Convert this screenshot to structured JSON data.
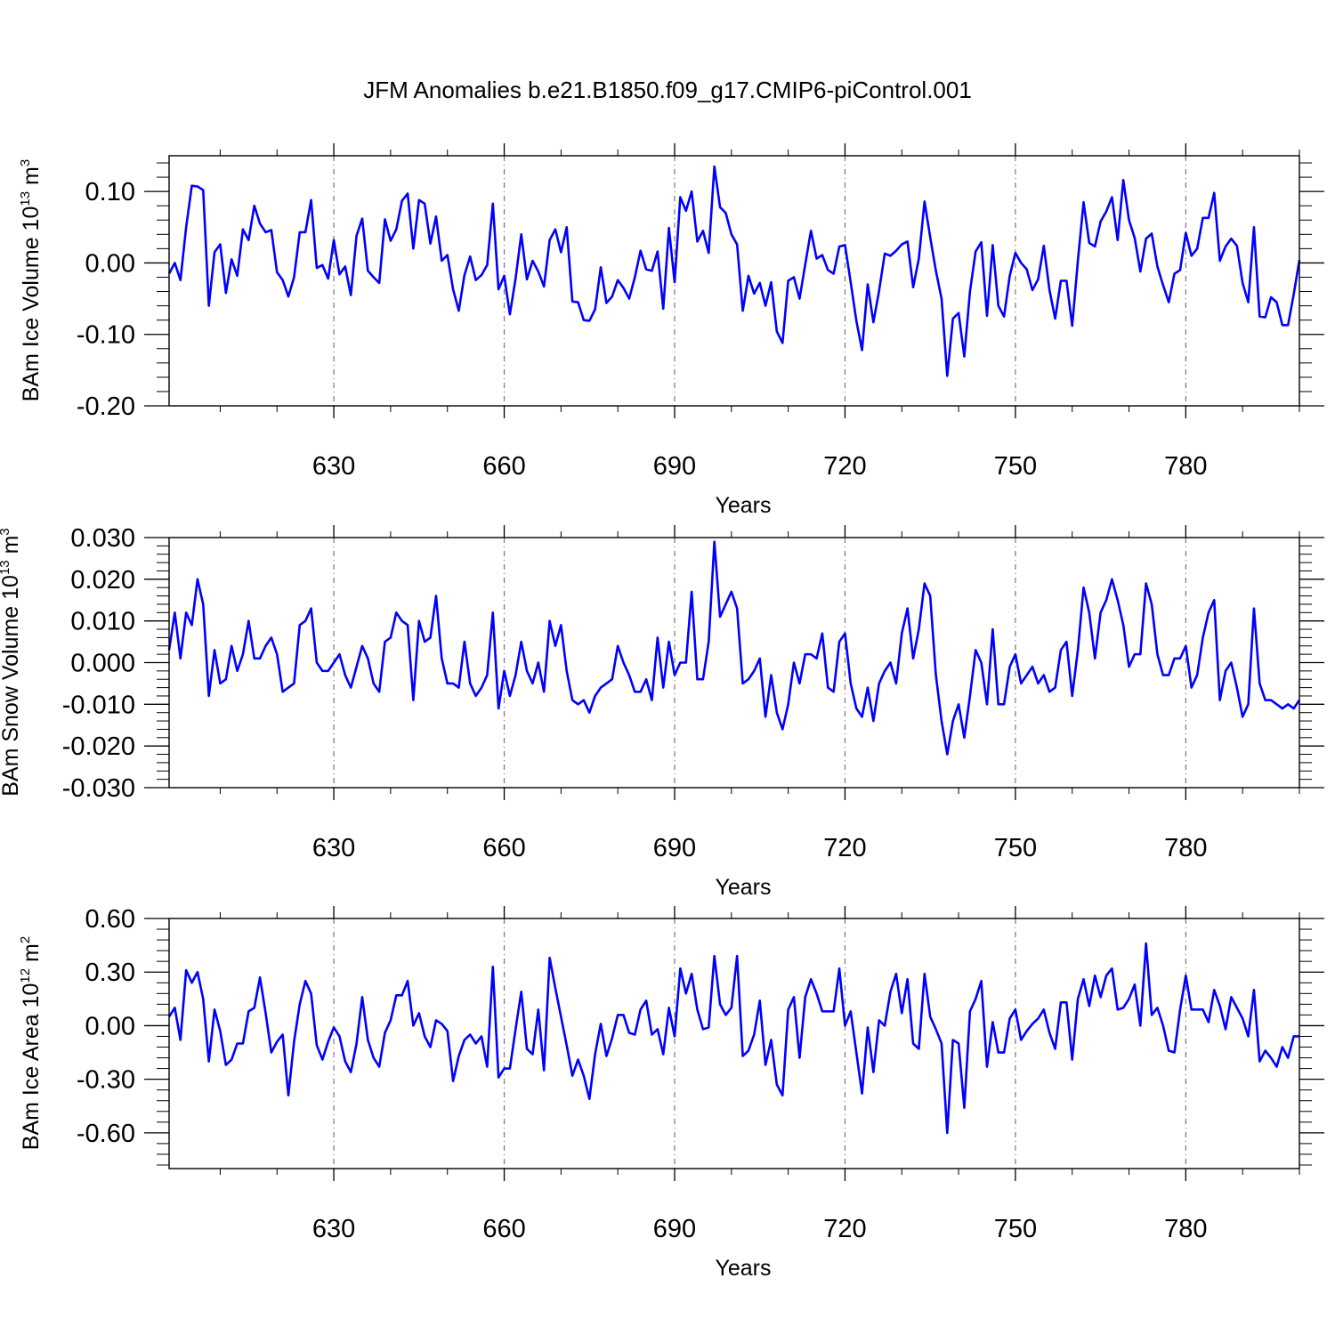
{
  "title": "JFM Anomalies b.e21.B1850.f09_g17.CMIP6-piControl.001",
  "line_color": "#0000ff",
  "chart_data": [
    {
      "type": "line",
      "xlabel": "Years",
      "ylabel": "BAm Ice Volume 10",
      "ylabel_sup_exp": "13",
      "ylabel_unit": " m",
      "ylabel_sup_unit": "3",
      "xlim": [
        601,
        800
      ],
      "ylim": [
        -0.2,
        0.15
      ],
      "x_ticks": [
        630,
        660,
        690,
        720,
        750,
        780
      ],
      "x_tick_labels": [
        "630",
        "660",
        "690",
        "720",
        "750",
        "780"
      ],
      "y_ticks": [
        -0.2,
        -0.1,
        0.0,
        0.1
      ],
      "y_tick_labels": [
        "-0.20",
        "-0.10",
        "0.00",
        "0.10"
      ],
      "grid": "vertical dashed at x ticks",
      "x_start": 601,
      "values": [
        -0.015,
        0.0,
        -0.024,
        0.05,
        0.108,
        0.107,
        0.102,
        -0.06,
        0.015,
        0.026,
        -0.042,
        0.005,
        -0.018,
        0.047,
        0.032,
        0.08,
        0.055,
        0.043,
        0.046,
        -0.013,
        -0.024,
        -0.047,
        -0.02,
        0.043,
        0.043,
        0.088,
        -0.007,
        -0.003,
        -0.022,
        0.032,
        -0.016,
        -0.005,
        -0.045,
        0.038,
        0.062,
        -0.011,
        -0.02,
        -0.028,
        0.061,
        0.031,
        0.047,
        0.087,
        0.097,
        0.02,
        0.088,
        0.083,
        0.027,
        0.065,
        0.003,
        0.011,
        -0.037,
        -0.067,
        -0.017,
        0.009,
        -0.024,
        -0.017,
        -0.003,
        0.083,
        -0.037,
        -0.018,
        -0.072,
        -0.022,
        0.04,
        -0.023,
        0.003,
        -0.012,
        -0.033,
        0.032,
        0.047,
        0.015,
        0.05,
        -0.054,
        -0.055,
        -0.08,
        -0.081,
        -0.065,
        -0.006,
        -0.056,
        -0.047,
        -0.024,
        -0.035,
        -0.05,
        -0.02,
        0.017,
        -0.009,
        -0.011,
        0.016,
        -0.064,
        0.049,
        -0.027,
        0.092,
        0.073,
        0.1,
        0.03,
        0.045,
        0.014,
        0.135,
        0.078,
        0.07,
        0.04,
        0.026,
        -0.067,
        -0.018,
        -0.043,
        -0.028,
        -0.06,
        -0.027,
        -0.096,
        -0.112,
        -0.025,
        -0.02,
        -0.05,
        -0.002,
        0.045,
        0.006,
        0.011,
        -0.01,
        -0.015,
        0.023,
        0.025,
        -0.027,
        -0.081,
        -0.122,
        -0.03,
        -0.083,
        -0.039,
        0.013,
        0.01,
        0.017,
        0.026,
        0.03,
        -0.034,
        0.006,
        0.086,
        0.036,
        -0.011,
        -0.05,
        -0.158,
        -0.078,
        -0.07,
        -0.131,
        -0.04,
        0.016,
        0.029,
        -0.074,
        0.025,
        -0.06,
        -0.075,
        -0.018,
        0.014,
        0.0,
        -0.009,
        -0.038,
        -0.023,
        0.024,
        -0.038,
        -0.078,
        -0.025,
        -0.025,
        -0.088,
        0.003,
        0.085,
        0.028,
        0.023,
        0.058,
        0.072,
        0.092,
        0.032,
        0.116,
        0.06,
        0.035,
        -0.012,
        0.034,
        0.041,
        -0.005,
        -0.031,
        -0.055,
        -0.015,
        -0.01,
        0.042,
        0.01,
        0.02,
        0.063,
        0.063,
        0.098,
        0.003,
        0.023,
        0.034,
        0.024,
        -0.028,
        -0.055,
        0.05,
        -0.075,
        -0.076,
        -0.048,
        -0.055,
        -0.087,
        -0.087,
        -0.044,
        0.004
      ]
    },
    {
      "type": "line",
      "xlabel": "Years",
      "ylabel": "BAm Snow Volume 10",
      "ylabel_sup_exp": "13",
      "ylabel_unit": " m",
      "ylabel_sup_unit": "3",
      "xlim": [
        601,
        800
      ],
      "ylim": [
        -0.03,
        0.03
      ],
      "x_ticks": [
        630,
        660,
        690,
        720,
        750,
        780
      ],
      "x_tick_labels": [
        "630",
        "660",
        "690",
        "720",
        "750",
        "780"
      ],
      "y_ticks": [
        -0.03,
        -0.02,
        -0.01,
        0.0,
        0.01,
        0.02,
        0.03
      ],
      "y_tick_labels": [
        "-0.030",
        "-0.020",
        "-0.010",
        "0.000",
        "0.010",
        "0.020",
        "0.030"
      ],
      "grid": "vertical dashed at x ticks",
      "x_start": 601,
      "values": [
        0.003,
        0.012,
        0.001,
        0.012,
        0.009,
        0.02,
        0.014,
        -0.008,
        0.003,
        -0.005,
        -0.004,
        0.004,
        -0.002,
        0.002,
        0.01,
        0.001,
        0.001,
        0.004,
        0.006,
        0.002,
        -0.007,
        -0.006,
        -0.005,
        0.009,
        0.01,
        0.013,
        0.0,
        -0.002,
        -0.002,
        0.0,
        0.002,
        -0.003,
        -0.006,
        -0.001,
        0.004,
        0.001,
        -0.005,
        -0.007,
        0.005,
        0.006,
        0.012,
        0.01,
        0.009,
        -0.009,
        0.01,
        0.005,
        0.006,
        0.016,
        0.001,
        -0.005,
        -0.005,
        -0.006,
        0.005,
        -0.005,
        -0.008,
        -0.006,
        -0.003,
        0.012,
        -0.011,
        -0.002,
        -0.008,
        -0.003,
        0.005,
        -0.002,
        -0.005,
        0.0,
        -0.007,
        0.01,
        0.004,
        0.009,
        -0.002,
        -0.009,
        -0.01,
        -0.009,
        -0.012,
        -0.008,
        -0.006,
        -0.005,
        -0.004,
        0.004,
        0.0,
        -0.003,
        -0.007,
        -0.007,
        -0.004,
        -0.009,
        0.006,
        -0.006,
        0.005,
        -0.003,
        0.0,
        0.0,
        0.017,
        -0.004,
        -0.004,
        0.005,
        0.029,
        0.011,
        0.014,
        0.017,
        0.013,
        -0.005,
        -0.004,
        -0.002,
        0.001,
        -0.013,
        -0.003,
        -0.012,
        -0.016,
        -0.01,
        0.0,
        -0.005,
        0.002,
        0.002,
        0.001,
        0.007,
        -0.006,
        -0.007,
        0.005,
        0.007,
        -0.005,
        -0.011,
        -0.013,
        -0.006,
        -0.014,
        -0.005,
        -0.002,
        0.0,
        -0.005,
        0.007,
        0.013,
        0.001,
        0.008,
        0.019,
        0.016,
        -0.003,
        -0.014,
        -0.022,
        -0.014,
        -0.01,
        -0.018,
        -0.008,
        0.003,
        0.0,
        -0.01,
        0.008,
        -0.01,
        -0.01,
        -0.001,
        0.002,
        -0.005,
        -0.003,
        -0.001,
        -0.005,
        -0.003,
        -0.007,
        -0.006,
        0.003,
        0.005,
        -0.008,
        0.003,
        0.018,
        0.012,
        0.001,
        0.012,
        0.015,
        0.02,
        0.015,
        0.009,
        -0.001,
        0.002,
        0.002,
        0.019,
        0.014,
        0.002,
        -0.003,
        -0.003,
        0.001,
        0.001,
        0.004,
        -0.006,
        -0.003,
        0.006,
        0.012,
        0.015,
        -0.009,
        -0.002,
        0.0,
        -0.006,
        -0.013,
        -0.01,
        0.013,
        -0.005,
        -0.009,
        -0.009,
        -0.01,
        -0.011,
        -0.01,
        -0.011,
        -0.009
      ]
    },
    {
      "type": "line",
      "xlabel": "Years",
      "ylabel": "BAm Ice Area 10",
      "ylabel_sup_exp": "12",
      "ylabel_unit": " m",
      "ylabel_sup_unit": "2",
      "xlim": [
        601,
        800
      ],
      "ylim": [
        -0.8,
        0.6
      ],
      "x_ticks": [
        630,
        660,
        690,
        720,
        750,
        780
      ],
      "x_tick_labels": [
        "630",
        "660",
        "690",
        "720",
        "750",
        "780"
      ],
      "y_ticks": [
        -0.6,
        -0.3,
        0.0,
        0.3,
        0.6
      ],
      "y_tick_labels": [
        "-0.60",
        "-0.30",
        "0.00",
        "0.30",
        "0.60"
      ],
      "grid": "vertical dashed at x ticks",
      "x_start": 601,
      "values": [
        0.05,
        0.1,
        -0.08,
        0.31,
        0.24,
        0.3,
        0.15,
        -0.2,
        0.09,
        -0.03,
        -0.22,
        -0.19,
        -0.1,
        -0.1,
        0.08,
        0.1,
        0.27,
        0.07,
        -0.15,
        -0.09,
        -0.05,
        -0.39,
        -0.09,
        0.12,
        0.25,
        0.18,
        -0.11,
        -0.19,
        -0.09,
        -0.01,
        -0.06,
        -0.2,
        -0.26,
        -0.1,
        0.16,
        -0.08,
        -0.18,
        -0.23,
        -0.04,
        0.03,
        0.17,
        0.17,
        0.25,
        0.0,
        0.07,
        -0.06,
        -0.12,
        0.03,
        0.01,
        -0.03,
        -0.31,
        -0.17,
        -0.08,
        -0.05,
        -0.1,
        -0.06,
        -0.23,
        0.33,
        -0.29,
        -0.24,
        -0.24,
        -0.02,
        0.19,
        -0.13,
        -0.16,
        0.09,
        -0.25,
        0.38,
        0.21,
        0.05,
        -0.11,
        -0.28,
        -0.19,
        -0.28,
        -0.41,
        -0.16,
        0.01,
        -0.17,
        -0.07,
        0.06,
        0.06,
        -0.04,
        -0.05,
        0.09,
        0.14,
        -0.05,
        -0.02,
        -0.16,
        0.1,
        -0.06,
        0.32,
        0.18,
        0.29,
        0.09,
        -0.02,
        -0.01,
        0.39,
        0.12,
        0.06,
        0.1,
        0.39,
        -0.17,
        -0.14,
        -0.05,
        0.14,
        -0.22,
        -0.08,
        -0.33,
        -0.39,
        0.09,
        0.16,
        -0.18,
        0.16,
        0.26,
        0.18,
        0.08,
        0.08,
        0.08,
        0.32,
        0.0,
        0.08,
        -0.15,
        -0.38,
        -0.01,
        -0.26,
        0.03,
        0.0,
        0.19,
        0.29,
        0.07,
        0.26,
        -0.1,
        -0.13,
        0.29,
        0.05,
        -0.02,
        -0.1,
        -0.6,
        -0.08,
        -0.1,
        -0.46,
        0.08,
        0.15,
        0.25,
        -0.23,
        0.02,
        -0.15,
        -0.15,
        0.04,
        0.09,
        -0.08,
        -0.03,
        0.01,
        0.04,
        0.09,
        -0.04,
        -0.13,
        0.13,
        0.13,
        -0.19,
        0.15,
        0.26,
        0.11,
        0.28,
        0.16,
        0.28,
        0.32,
        0.09,
        0.1,
        0.15,
        0.23,
        0.0,
        0.46,
        0.06,
        0.1,
        0.0,
        -0.14,
        -0.15,
        0.09,
        0.28,
        0.09,
        0.09,
        0.09,
        0.02,
        0.2,
        0.11,
        -0.02,
        0.16,
        0.1,
        0.04,
        -0.06,
        0.2,
        -0.2,
        -0.14,
        -0.18,
        -0.23,
        -0.12,
        -0.18,
        -0.06,
        -0.06
      ]
    }
  ]
}
